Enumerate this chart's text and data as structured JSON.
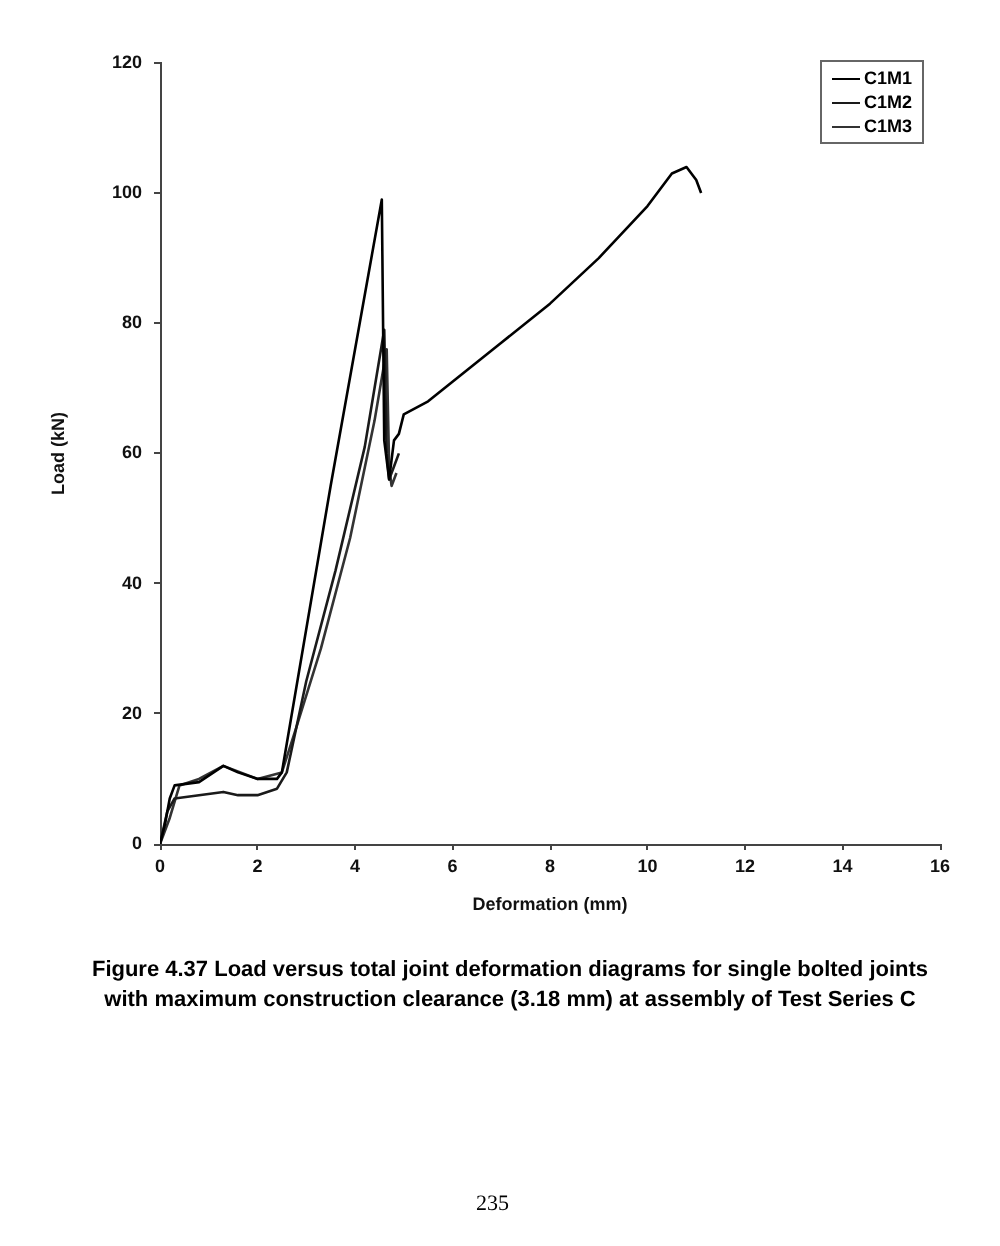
{
  "chart_data": {
    "type": "line",
    "title": "Figure 4.37   Load versus total joint deformation diagrams for single bolted joints with maximum construction clearance (3.18 mm) at assembly of Test Series C",
    "xlabel": "Deformation (mm)",
    "ylabel": "Load (kN)",
    "annotations": [
      "235"
    ],
    "xlim": [
      0,
      16
    ],
    "xticks": [
      0,
      2,
      4,
      6,
      8,
      10,
      12,
      14,
      16
    ],
    "ylim": [
      0,
      120
    ],
    "yticks": [
      0,
      20,
      40,
      60,
      80,
      100,
      120
    ],
    "grid": false,
    "legend": "top right",
    "marker": "none",
    "line_style": "solid",
    "series": [
      {
        "name": "C1M1",
        "color": "#000000",
        "x": [
          0,
          0.1,
          0.2,
          0.3,
          0.8,
          1.3,
          1.6,
          2.0,
          2.4,
          2.5,
          3.5,
          4.55,
          4.6,
          4.7,
          4.8,
          4.9,
          5.0,
          5.5,
          6.0,
          7.0,
          8.0,
          9.0,
          10.0,
          10.5,
          10.8,
          11.0,
          11.1
        ],
        "values": [
          0,
          3,
          7,
          9,
          9.5,
          12,
          11,
          10,
          10,
          11,
          55,
          99,
          62,
          56,
          62,
          63,
          66,
          68,
          71,
          77,
          83,
          90,
          98,
          103,
          104,
          102,
          100
        ]
      },
      {
        "name": "C1M2",
        "color": "#1a1a1a",
        "x": [
          0,
          0.15,
          0.3,
          0.8,
          1.3,
          1.6,
          2.0,
          2.4,
          2.6,
          3.0,
          3.6,
          4.2,
          4.6,
          4.65,
          4.7,
          4.8,
          4.9
        ],
        "values": [
          0,
          5,
          7,
          7.5,
          8,
          7.5,
          7.5,
          8.5,
          11,
          25,
          42,
          61,
          79,
          60,
          56,
          58,
          60
        ]
      },
      {
        "name": "C1M3",
        "color": "#333333",
        "x": [
          0,
          0.2,
          0.4,
          0.8,
          1.3,
          2.0,
          2.5,
          2.8,
          3.3,
          3.9,
          4.4,
          4.65,
          4.7,
          4.75,
          4.85
        ],
        "values": [
          0,
          4,
          9,
          10,
          12,
          10,
          11,
          18,
          30,
          47,
          65,
          76,
          58,
          55,
          57
        ]
      }
    ]
  }
}
